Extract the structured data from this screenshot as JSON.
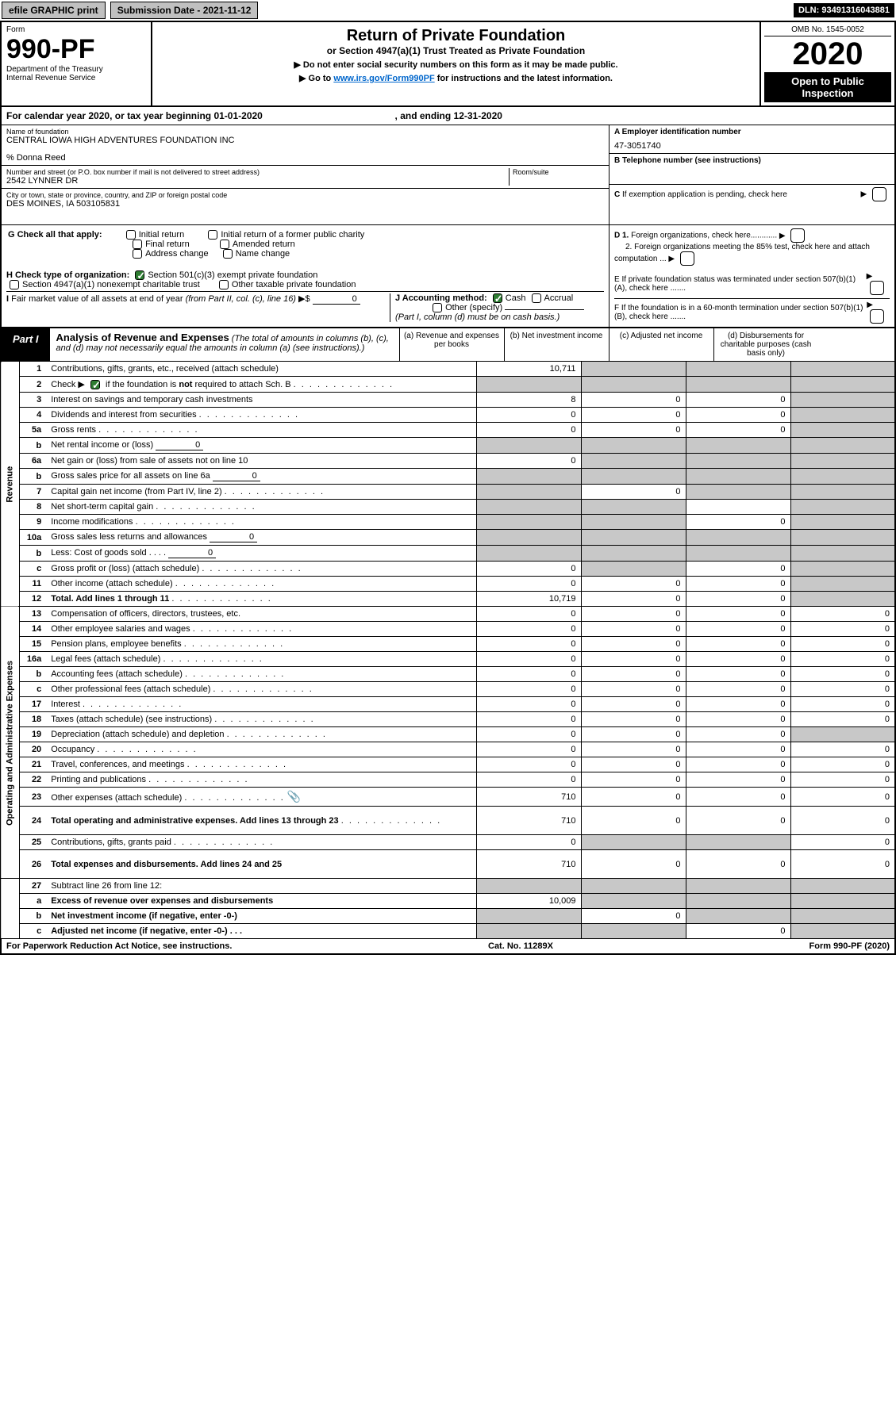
{
  "topbar": {
    "efile": "efile GRAPHIC print",
    "subdate_label": "Submission Date - 2021-11-12",
    "dln": "DLN: 93491316043881"
  },
  "header": {
    "form_label": "Form",
    "form_number": "990-PF",
    "dept": "Department of the Treasury",
    "irs": "Internal Revenue Service",
    "title": "Return of Private Foundation",
    "subtitle": "or Section 4947(a)(1) Trust Treated as Private Foundation",
    "note1": "▶ Do not enter social security numbers on this form as it may be made public.",
    "note2_pre": "▶ Go to ",
    "note2_link": "www.irs.gov/Form990PF",
    "note2_post": " for instructions and the latest information.",
    "omb": "OMB No. 1545-0052",
    "year": "2020",
    "open": "Open to Public Inspection"
  },
  "calendar": {
    "text_pre": "For calendar year 2020, or tax year beginning ",
    "begin": "01-01-2020",
    "mid": " , and ending ",
    "end": "12-31-2020"
  },
  "entity": {
    "name_label": "Name of foundation",
    "name": "CENTRAL IOWA HIGH ADVENTURES FOUNDATION INC",
    "care_of": "% Donna Reed",
    "addr_label": "Number and street (or P.O. box number if mail is not delivered to street address)",
    "addr": "2542 LYNNER DR",
    "room_label": "Room/suite",
    "city_label": "City or town, state or province, country, and ZIP or foreign postal code",
    "city": "DES MOINES, IA  503105831",
    "a_label": "A Employer identification number",
    "a_val": "47-3051740",
    "b_label": "B Telephone number (see instructions)",
    "c_label": "C If exemption application is pending, check here",
    "d1": "D 1. Foreign organizations, check here............",
    "d2": "2. Foreign organizations meeting the 85% test, check here and attach computation ...",
    "e": "E  If private foundation status was terminated under section 507(b)(1)(A), check here .......",
    "f": "F  If the foundation is in a 60-month termination under section 507(b)(1)(B), check here .......",
    "g_label": "G Check all that apply:",
    "g_opts": [
      "Initial return",
      "Initial return of a former public charity",
      "Final return",
      "Amended return",
      "Address change",
      "Name change"
    ],
    "h_label": "H Check type of organization:",
    "h1": "Section 501(c)(3) exempt private foundation",
    "h2": "Section 4947(a)(1) nonexempt charitable trust",
    "h3": "Other taxable private foundation",
    "i_label": "I Fair market value of all assets at end of year (from Part II, col. (c), line 16) ▶$ ",
    "i_val": "0",
    "j_label": "J Accounting method:",
    "j_cash": "Cash",
    "j_accrual": "Accrual",
    "j_other": "Other (specify)",
    "j_note": "(Part I, column (d) must be on cash basis.)"
  },
  "part1": {
    "tag": "Part I",
    "title": "Analysis of Revenue and Expenses",
    "title_note": " (The total of amounts in columns (b), (c), and (d) may not necessarily equal the amounts in column (a) (see instructions).)",
    "col_a": "(a)   Revenue and expenses per books",
    "col_b": "(b)   Net investment income",
    "col_c": "(c)   Adjusted net income",
    "col_d": "(d)   Disbursements for charitable purposes (cash basis only)"
  },
  "sides": {
    "revenue": "Revenue",
    "expenses": "Operating and Administrative Expenses"
  },
  "lines": [
    {
      "n": "1",
      "d": "Contributions, gifts, grants, etc., received (attach schedule)",
      "a": "10,711",
      "b": "",
      "c": "",
      "dd": "",
      "sb": true,
      "sc": true,
      "sd": true
    },
    {
      "n": "2",
      "d": "Check ▶ ☑ if the foundation is not required to attach Sch. B",
      "a": "",
      "b": "",
      "c": "",
      "dd": "",
      "sa": true,
      "sb": true,
      "sc": true,
      "sd": true,
      "dots": true,
      "checked": true
    },
    {
      "n": "3",
      "d": "Interest on savings and temporary cash investments",
      "a": "8",
      "b": "0",
      "c": "0",
      "dd": "",
      "sd": true
    },
    {
      "n": "4",
      "d": "Dividends and interest from securities",
      "a": "0",
      "b": "0",
      "c": "0",
      "dd": "",
      "sd": true,
      "dots": true
    },
    {
      "n": "5a",
      "d": "Gross rents",
      "a": "0",
      "b": "0",
      "c": "0",
      "dd": "",
      "sd": true,
      "dots": true
    },
    {
      "n": "b",
      "d": "Net rental income or (loss)",
      "inline": "0",
      "a": "",
      "b": "",
      "c": "",
      "dd": "",
      "sa": true,
      "sb": true,
      "sc": true,
      "sd": true
    },
    {
      "n": "6a",
      "d": "Net gain or (loss) from sale of assets not on line 10",
      "a": "0",
      "b": "",
      "c": "",
      "dd": "",
      "sb": true,
      "sc": true,
      "sd": true
    },
    {
      "n": "b",
      "d": "Gross sales price for all assets on line 6a",
      "inline": "0",
      "a": "",
      "b": "",
      "c": "",
      "dd": "",
      "sa": true,
      "sb": true,
      "sc": true,
      "sd": true
    },
    {
      "n": "7",
      "d": "Capital gain net income (from Part IV, line 2)",
      "a": "",
      "b": "0",
      "c": "",
      "dd": "",
      "sa": true,
      "sc": true,
      "sd": true,
      "dots": true
    },
    {
      "n": "8",
      "d": "Net short-term capital gain",
      "a": "",
      "b": "",
      "c": "",
      "dd": "",
      "sa": true,
      "sb": true,
      "sd": true,
      "dots": true
    },
    {
      "n": "9",
      "d": "Income modifications",
      "a": "",
      "b": "",
      "c": "0",
      "dd": "",
      "sa": true,
      "sb": true,
      "sd": true,
      "dots": true
    },
    {
      "n": "10a",
      "d": "Gross sales less returns and allowances",
      "inline": "0",
      "a": "",
      "b": "",
      "c": "",
      "dd": "",
      "sa": true,
      "sb": true,
      "sc": true,
      "sd": true
    },
    {
      "n": "b",
      "d": "Less: Cost of goods sold",
      "inline": "0",
      "a": "",
      "b": "",
      "c": "",
      "dd": "",
      "sa": true,
      "sb": true,
      "sc": true,
      "sd": true,
      "dots": true
    },
    {
      "n": "c",
      "d": "Gross profit or (loss) (attach schedule)",
      "a": "0",
      "b": "",
      "c": "0",
      "dd": "",
      "sb": true,
      "sd": true,
      "dots": true
    },
    {
      "n": "11",
      "d": "Other income (attach schedule)",
      "a": "0",
      "b": "0",
      "c": "0",
      "dd": "",
      "sd": true,
      "dots": true
    },
    {
      "n": "12",
      "d": "Total. Add lines 1 through 11",
      "a": "10,719",
      "b": "0",
      "c": "0",
      "dd": "",
      "sd": true,
      "dots": true,
      "bold": true
    }
  ],
  "exp_lines": [
    {
      "n": "13",
      "d": "Compensation of officers, directors, trustees, etc.",
      "a": "0",
      "b": "0",
      "c": "0",
      "dd": "0"
    },
    {
      "n": "14",
      "d": "Other employee salaries and wages",
      "a": "0",
      "b": "0",
      "c": "0",
      "dd": "0",
      "dots": true
    },
    {
      "n": "15",
      "d": "Pension plans, employee benefits",
      "a": "0",
      "b": "0",
      "c": "0",
      "dd": "0",
      "dots": true
    },
    {
      "n": "16a",
      "d": "Legal fees (attach schedule)",
      "a": "0",
      "b": "0",
      "c": "0",
      "dd": "0",
      "dots": true
    },
    {
      "n": "b",
      "d": "Accounting fees (attach schedule)",
      "a": "0",
      "b": "0",
      "c": "0",
      "dd": "0",
      "dots": true
    },
    {
      "n": "c",
      "d": "Other professional fees (attach schedule)",
      "a": "0",
      "b": "0",
      "c": "0",
      "dd": "0",
      "dots": true
    },
    {
      "n": "17",
      "d": "Interest",
      "a": "0",
      "b": "0",
      "c": "0",
      "dd": "0",
      "dots": true
    },
    {
      "n": "18",
      "d": "Taxes (attach schedule) (see instructions)",
      "a": "0",
      "b": "0",
      "c": "0",
      "dd": "0",
      "dots": true
    },
    {
      "n": "19",
      "d": "Depreciation (attach schedule) and depletion",
      "a": "0",
      "b": "0",
      "c": "0",
      "dd": "",
      "sd": true,
      "dots": true
    },
    {
      "n": "20",
      "d": "Occupancy",
      "a": "0",
      "b": "0",
      "c": "0",
      "dd": "0",
      "dots": true
    },
    {
      "n": "21",
      "d": "Travel, conferences, and meetings",
      "a": "0",
      "b": "0",
      "c": "0",
      "dd": "0",
      "dots": true
    },
    {
      "n": "22",
      "d": "Printing and publications",
      "a": "0",
      "b": "0",
      "c": "0",
      "dd": "0",
      "dots": true
    },
    {
      "n": "23",
      "d": "Other expenses (attach schedule)",
      "a": "710",
      "b": "0",
      "c": "0",
      "dd": "0",
      "dots": true,
      "clip": true
    },
    {
      "n": "24",
      "d": "Total operating and administrative expenses. Add lines 13 through 23",
      "a": "710",
      "b": "0",
      "c": "0",
      "dd": "0",
      "dots": true,
      "bold": true,
      "tall": true
    },
    {
      "n": "25",
      "d": "Contributions, gifts, grants paid",
      "a": "0",
      "b": "",
      "c": "",
      "dd": "0",
      "sb": true,
      "sc": true,
      "dots": true
    },
    {
      "n": "26",
      "d": "Total expenses and disbursements. Add lines 24 and 25",
      "a": "710",
      "b": "0",
      "c": "0",
      "dd": "0",
      "bold": true,
      "tall": true
    }
  ],
  "line27": {
    "n": "27",
    "d": "Subtract line 26 from line 12:",
    "a_n": "a",
    "a_d": "Excess of revenue over expenses and disbursements",
    "a_v": "10,009",
    "b_n": "b",
    "b_d": "Net investment income (if negative, enter -0-)",
    "b_v": "0",
    "c_n": "c",
    "c_d": "Adjusted net income (if negative, enter -0-)",
    "c_v": "0"
  },
  "footer": {
    "left": "For Paperwork Reduction Act Notice, see instructions.",
    "mid": "Cat. No. 11289X",
    "right": "Form 990-PF (2020)"
  },
  "colors": {
    "btn_bg": "#c0c0c0",
    "black": "#000000",
    "shade": "#c8c8c8",
    "link": "#0066cc",
    "check": "#2e7d32"
  }
}
